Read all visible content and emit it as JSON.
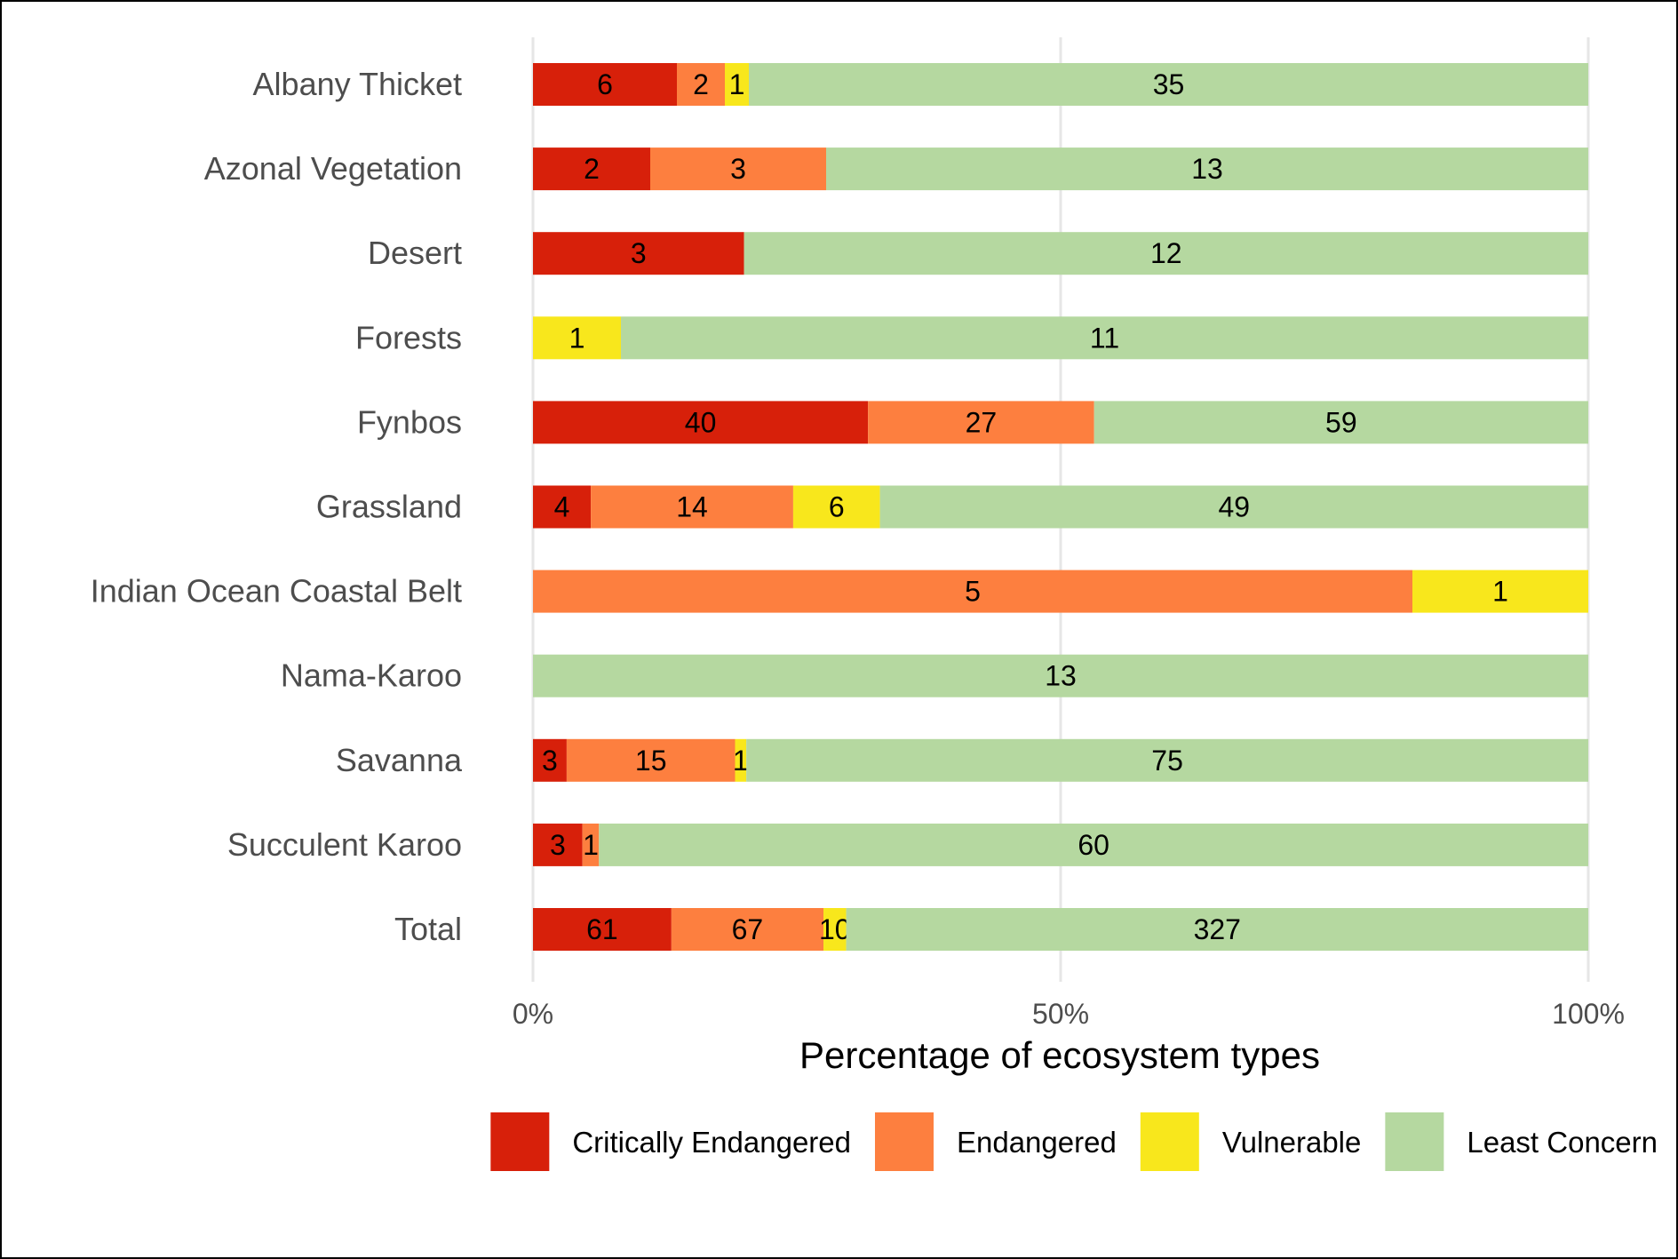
{
  "chart_data": {
    "type": "bar",
    "orientation": "horizontal",
    "stacked": "percent",
    "categories": [
      "Albany Thicket",
      "Azonal Vegetation",
      "Desert",
      "Forests",
      "Fynbos",
      "Grassland",
      "Indian Ocean Coastal Belt",
      "Nama-Karoo",
      "Savanna",
      "Succulent Karoo",
      "Total"
    ],
    "series": [
      {
        "name": "Critically Endangered",
        "color": "#d7200a",
        "values": [
          6,
          2,
          3,
          0,
          40,
          4,
          0,
          0,
          3,
          3,
          61
        ]
      },
      {
        "name": "Endangered",
        "color": "#fd7f3f",
        "values": [
          2,
          3,
          0,
          0,
          27,
          14,
          5,
          0,
          15,
          1,
          67
        ]
      },
      {
        "name": "Vulnerable",
        "color": "#f8e71c",
        "values": [
          1,
          0,
          0,
          1,
          0,
          6,
          1,
          0,
          1,
          0,
          10
        ]
      },
      {
        "name": "Least Concern",
        "color": "#b5d8a0",
        "values": [
          35,
          13,
          12,
          11,
          59,
          49,
          0,
          13,
          75,
          60,
          327
        ]
      }
    ],
    "xlabel": "Percentage of ecosystem types",
    "ylabel": "",
    "xlim": [
      0,
      100
    ],
    "x_ticks": [
      "0%",
      "50%",
      "100%"
    ],
    "grid": "vertical major lines",
    "legend_position": "bottom"
  }
}
